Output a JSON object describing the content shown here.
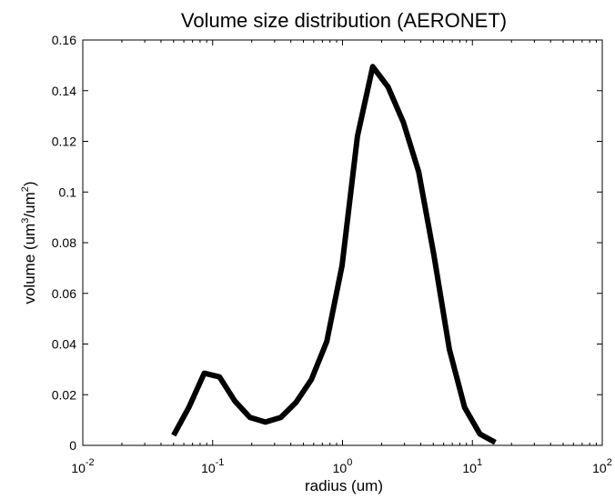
{
  "chart_data": {
    "type": "line",
    "title": "Volume size distribution (AERONET)",
    "xlabel": "radius (um)",
    "ylabel": {
      "text_parts": [
        "volume (um",
        "3",
        "/um",
        "2",
        ")"
      ]
    },
    "xscale": "log",
    "xlim": [
      0.01,
      100
    ],
    "ylim": [
      0,
      0.16
    ],
    "x_ticks": [
      {
        "value": 0.01,
        "base": "10",
        "exp": "-2"
      },
      {
        "value": 0.1,
        "base": "10",
        "exp": "-1"
      },
      {
        "value": 1,
        "base": "10",
        "exp": "0"
      },
      {
        "value": 10,
        "base": "10",
        "exp": "1"
      },
      {
        "value": 100,
        "base": "10",
        "exp": "2"
      }
    ],
    "y_ticks": [
      {
        "value": 0,
        "label": "0"
      },
      {
        "value": 0.02,
        "label": "0.02"
      },
      {
        "value": 0.04,
        "label": "0.04"
      },
      {
        "value": 0.06,
        "label": "0.06"
      },
      {
        "value": 0.08,
        "label": "0.08"
      },
      {
        "value": 0.1,
        "label": "0.1"
      },
      {
        "value": 0.12,
        "label": "0.12"
      },
      {
        "value": 0.14,
        "label": "0.14"
      },
      {
        "value": 0.16,
        "label": "0.16"
      }
    ],
    "grid": false,
    "legend": null,
    "series": [
      {
        "color": "#000000",
        "x": [
          0.05,
          0.0656,
          0.0861,
          0.113,
          0.148,
          0.194,
          0.255,
          0.335,
          0.439,
          0.576,
          0.756,
          0.992,
          1.302,
          1.708,
          2.241,
          2.94,
          3.857,
          5.061,
          6.641,
          8.713,
          11.432,
          15.0
        ],
        "y": [
          0.004,
          0.015,
          0.0285,
          0.027,
          0.0175,
          0.011,
          0.0092,
          0.011,
          0.017,
          0.026,
          0.041,
          0.071,
          0.122,
          0.1495,
          0.1415,
          0.1275,
          0.108,
          0.075,
          0.038,
          0.015,
          0.0045,
          0.0012
        ]
      }
    ]
  }
}
